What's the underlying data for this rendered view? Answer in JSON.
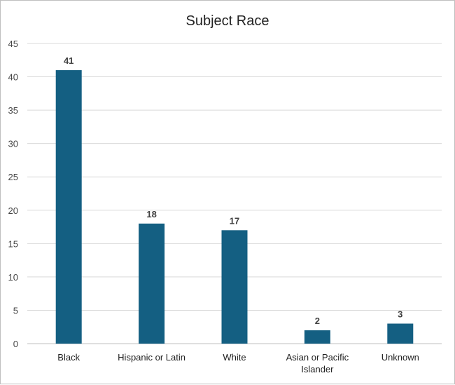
{
  "chart_data": {
    "type": "bar",
    "title": "Subject Race",
    "xlabel": "",
    "ylabel": "",
    "categories": [
      "Black",
      "Hispanic or Latin",
      "White",
      "Asian or Pacific Islander",
      "Unknown"
    ],
    "category_lines": [
      [
        "Black"
      ],
      [
        "Hispanic or Latin"
      ],
      [
        "White"
      ],
      [
        "Asian or Pacific",
        "Islander"
      ],
      [
        "Unknown"
      ]
    ],
    "values": [
      41,
      18,
      17,
      2,
      3
    ],
    "ylim": [
      0,
      45
    ],
    "yticks": [
      0,
      5,
      10,
      15,
      20,
      25,
      30,
      35,
      40,
      45
    ],
    "grid": true,
    "legend": "none",
    "data_labels": true,
    "bar_color": "#145f82"
  }
}
